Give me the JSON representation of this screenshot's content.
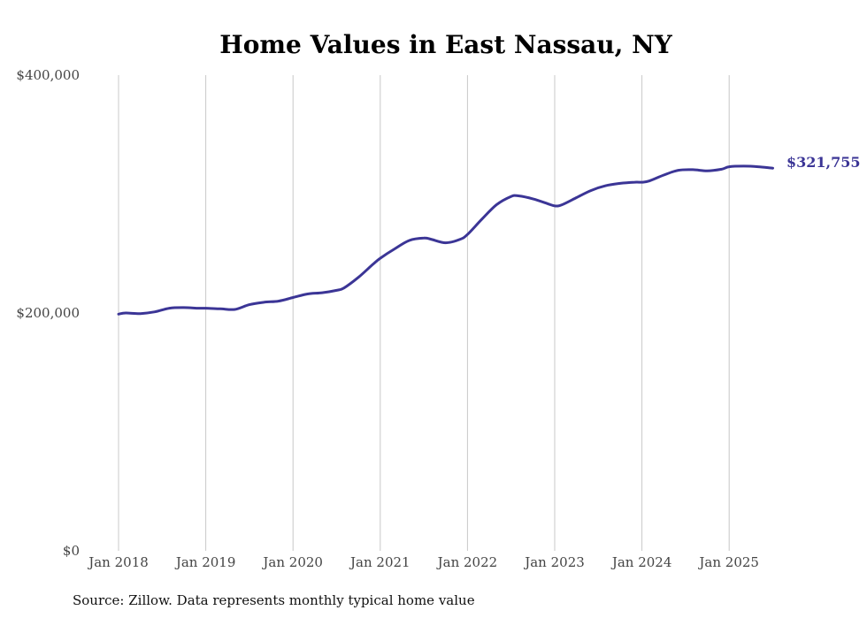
{
  "chart_data": {
    "type": "line",
    "title": "Home Values in East Nassau, NY",
    "source": "Source: Zillow. Data represents monthly typical home value",
    "ylim": [
      0,
      400000
    ],
    "yticks": [
      {
        "value": 0,
        "label": "$0"
      },
      {
        "value": 200000,
        "label": "$200,000"
      },
      {
        "value": 400000,
        "label": "$400,000"
      }
    ],
    "xticks": [
      {
        "value": 2018.0,
        "label": "Jan 2018"
      },
      {
        "value": 2019.0,
        "label": "Jan 2019"
      },
      {
        "value": 2020.0,
        "label": "Jan 2020"
      },
      {
        "value": 2021.0,
        "label": "Jan 2021"
      },
      {
        "value": 2022.0,
        "label": "Jan 2022"
      },
      {
        "value": 2023.0,
        "label": "Jan 2023"
      },
      {
        "value": 2024.0,
        "label": "Jan 2024"
      },
      {
        "value": 2025.0,
        "label": "Jan 2025"
      }
    ],
    "xlim": [
      2018.0,
      2025.5
    ],
    "grid": "vertical",
    "line_color": "#3b3596",
    "end_label": "$321,755",
    "series": [
      {
        "x": [
          2018.0,
          2018.083,
          2018.25,
          2018.417,
          2018.583,
          2018.75,
          2018.917,
          2019.0,
          2019.167,
          2019.333,
          2019.5,
          2019.667,
          2019.833,
          2020.0,
          2020.167,
          2020.333,
          2020.5,
          2020.583,
          2020.75,
          2020.917,
          2021.0,
          2021.167,
          2021.333,
          2021.5,
          2021.583,
          2021.75,
          2021.917,
          2022.0,
          2022.167,
          2022.333,
          2022.5,
          2022.583,
          2022.75,
          2022.917,
          2023.0,
          2023.083,
          2023.25,
          2023.417,
          2023.583,
          2023.75,
          2023.917,
          2024.0,
          2024.083,
          2024.25,
          2024.417,
          2024.583,
          2024.75,
          2024.917,
          2025.0,
          2025.167,
          2025.333,
          2025.5
        ],
        "y": [
          199000,
          200000,
          199500,
          201000,
          204000,
          204500,
          204000,
          204000,
          203500,
          203000,
          207000,
          209000,
          210000,
          213000,
          216000,
          217000,
          219000,
          221000,
          230000,
          241000,
          246000,
          254000,
          261000,
          263000,
          262000,
          259000,
          262000,
          266000,
          279000,
          291000,
          298000,
          298500,
          296000,
          292000,
          290000,
          291000,
          297000,
          303000,
          307000,
          309000,
          310000,
          310000,
          311000,
          316000,
          320000,
          320500,
          319500,
          321000,
          323000,
          323500,
          323000,
          321755
        ]
      }
    ]
  }
}
